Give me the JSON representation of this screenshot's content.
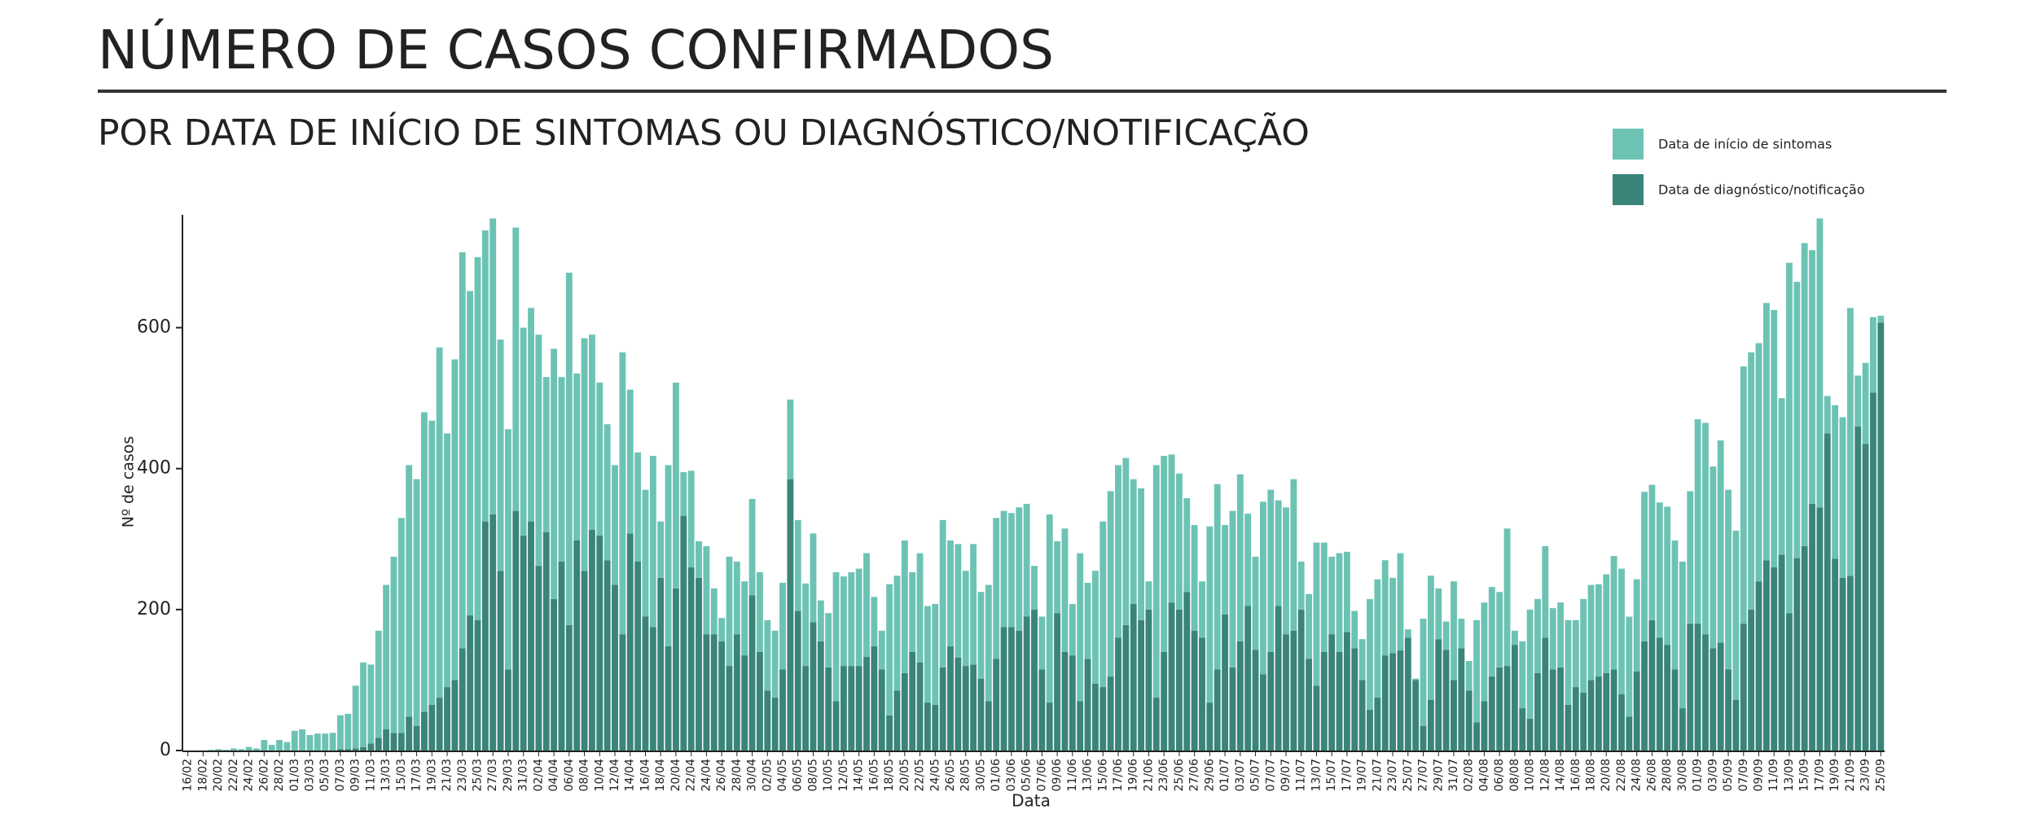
{
  "chart_data": {
    "type": "stacked_bar",
    "title": "NÚMERO DE CASOS CONFIRMADOS",
    "subtitle": "POR DATA DE INÍCIO DE SINTOMAS OU DIAGNÓSTICO/NOTIFICAÇÃO",
    "x_label": "Data",
    "y_label": "Nº de casos",
    "categories": [
      "16/02",
      null,
      "18/02",
      null,
      "20/02",
      null,
      "22/02",
      null,
      "24/02",
      null,
      "26/02",
      null,
      "28/02",
      null,
      "01/03",
      null,
      "03/03",
      null,
      "05/03",
      null,
      "07/03",
      null,
      "09/03",
      null,
      "11/03",
      null,
      "13/03",
      null,
      "15/03",
      null,
      "17/03",
      null,
      "19/03",
      null,
      "21/03",
      null,
      "23/03",
      null,
      "25/03",
      null,
      "27/03",
      null,
      "29/03",
      null,
      "31/03",
      null,
      "02/04",
      null,
      "04/04",
      null,
      "06/04",
      null,
      "08/04",
      null,
      "10/04",
      null,
      "12/04",
      null,
      "14/04",
      null,
      "16/04",
      null,
      "18/04",
      null,
      "20/04",
      null,
      "22/04",
      null,
      "24/04",
      null,
      "26/04",
      null,
      "28/04",
      null,
      "30/04",
      null,
      "02/05",
      null,
      "04/05",
      null,
      "06/05",
      null,
      "08/05",
      null,
      "10/05",
      null,
      "12/05",
      null,
      "14/05",
      null,
      "16/05",
      null,
      "18/05",
      null,
      "20/05",
      null,
      "22/05",
      null,
      "24/05",
      null,
      "26/05",
      null,
      "28/05",
      null,
      "30/05",
      null,
      "01/06",
      null,
      "03/06",
      null,
      "05/06",
      null,
      "07/06",
      null,
      "09/06",
      null,
      "11/06",
      null,
      "13/06",
      null,
      "15/06",
      null,
      "17/06",
      null,
      "19/06",
      null,
      "21/06",
      null,
      "23/06",
      null,
      "25/06",
      null,
      "27/06",
      null,
      "29/06",
      null,
      "01/07",
      null,
      "03/07",
      null,
      "05/07",
      null,
      "07/07",
      null,
      "09/07",
      null,
      "11/07",
      null,
      "13/07",
      null,
      "15/07",
      null,
      "17/07",
      null,
      "19/07",
      null,
      "21/07",
      null,
      "23/07",
      null,
      "25/07",
      null,
      "27/07",
      null,
      "29/07",
      null,
      "31/07",
      null,
      "02/08",
      null,
      "04/08",
      null,
      "06/08",
      null,
      "08/08",
      null,
      "10/08",
      null,
      "12/08",
      null,
      "14/08",
      null,
      "16/08",
      null,
      "18/08",
      null,
      "20/08",
      null,
      "22/08",
      null,
      "24/08",
      null,
      "26/08",
      null,
      "28/08",
      null,
      "30/08",
      null,
      "01/09",
      null,
      "03/09",
      null,
      "05/09",
      null,
      "07/09",
      null,
      "09/09",
      null,
      "11/09",
      null,
      "13/09",
      null,
      "15/09",
      null,
      "17/09",
      null,
      "19/09",
      null,
      "21/09",
      null,
      "23/09",
      null,
      "25/09"
    ],
    "series": [
      {
        "name": "Data de início de sintomas",
        "color": "#6cc3b4",
        "values": [
          0,
          0,
          0,
          1,
          2,
          1,
          3,
          2,
          5,
          3,
          15,
          8,
          15,
          12,
          28,
          30,
          22,
          24,
          24,
          25,
          48,
          50,
          89,
          120,
          112,
          152,
          205,
          250,
          305,
          357,
          350,
          425,
          403,
          497,
          360,
          455,
          562,
          460,
          515,
          413,
          420,
          328,
          341,
          402,
          295,
          303,
          328,
          220,
          355,
          262,
          500,
          237,
          330,
          277,
          217,
          193,
          170,
          400,
          204,
          155,
          180,
          243,
          80,
          257,
          292,
          62,
          137,
          52,
          125,
          65,
          33,
          155,
          103,
          105,
          137,
          113,
          100,
          95,
          123,
          113,
          129,
          117,
          126,
          58,
          77,
          183,
          127,
          133,
          138,
          147,
          70,
          55,
          186,
          163,
          188,
          113,
          155,
          137,
          143,
          209,
          150,
          161,
          135,
          171,
          123,
          165,
          200,
          165,
          162,
          175,
          160,
          62,
          75,
          267,
          102,
          175,
          73,
          210,
          108,
          160,
          235,
          263,
          245,
          237,
          177,
          187,
          40,
          330,
          278,
          210,
          193,
          133,
          150,
          80,
          250,
          263,
          127,
          222,
          237,
          131,
          132,
          245,
          230,
          150,
          180,
          215,
          68,
          92,
          203,
          155,
          110,
          140,
          114,
          53,
          58,
          157,
          168,
          135,
          107,
          138,
          12,
          2,
          152,
          176,
          72,
          40,
          140,
          42,
          42,
          145,
          140,
          127,
          107,
          195,
          20,
          95,
          155,
          105,
          130,
          87,
          92,
          120,
          95,
          133,
          135,
          131,
          140,
          161,
          178,
          142,
          131,
          212,
          192,
          192,
          196,
          183,
          208,
          188,
          290,
          300,
          258,
          287,
          255,
          240,
          365,
          365,
          338,
          365,
          365,
          222,
          497,
          392,
          430,
          360,
          410,
          53,
          218,
          228,
          380,
          72,
          115,
          107,
          10
        ]
      },
      {
        "name": "Data de diagnóstico/notificação",
        "color": "#3a8479",
        "values": [
          0,
          0,
          0,
          0,
          0,
          0,
          0,
          0,
          0,
          0,
          0,
          0,
          0,
          0,
          0,
          0,
          0,
          0,
          0,
          0,
          2,
          2,
          3,
          5,
          10,
          18,
          30,
          25,
          25,
          48,
          35,
          55,
          65,
          75,
          90,
          100,
          145,
          192,
          185,
          325,
          335,
          255,
          115,
          340,
          305,
          325,
          262,
          310,
          215,
          268,
          178,
          298,
          255,
          313,
          305,
          270,
          235,
          165,
          308,
          268,
          190,
          175,
          245,
          148,
          230,
          333,
          260,
          245,
          165,
          165,
          155,
          120,
          165,
          135,
          220,
          140,
          85,
          75,
          115,
          385,
          198,
          120,
          182,
          155,
          118,
          70,
          120,
          120,
          120,
          133,
          148,
          115,
          50,
          85,
          110,
          140,
          125,
          68,
          65,
          118,
          148,
          132,
          120,
          122,
          102,
          70,
          130,
          175,
          175,
          170,
          190,
          200,
          115,
          68,
          195,
          140,
          135,
          70,
          130,
          95,
          90,
          105,
          160,
          178,
          208,
          185,
          200,
          75,
          140,
          210,
          200,
          225,
          170,
          160,
          68,
          115,
          193,
          118,
          155,
          205,
          143,
          108,
          140,
          205,
          165,
          170,
          200,
          130,
          92,
          140,
          165,
          140,
          168,
          145,
          100,
          58,
          75,
          135,
          138,
          142,
          160,
          100,
          35,
          72,
          158,
          143,
          100,
          145,
          85,
          40,
          70,
          105,
          118,
          120,
          150,
          60,
          45,
          110,
          160,
          115,
          118,
          65,
          90,
          82,
          100,
          105,
          110,
          115,
          80,
          48,
          112,
          155,
          185,
          160,
          150,
          115,
          60,
          180,
          180,
          165,
          145,
          153,
          115,
          72,
          180,
          200,
          240,
          270,
          260,
          278,
          195,
          273,
          290,
          350,
          345,
          450,
          272,
          245,
          248,
          460,
          435,
          508,
          607
        ]
      }
    ],
    "ylim": [
      0,
      760
    ],
    "yticks": [
      0,
      200,
      400,
      600
    ],
    "grid": false,
    "legend": "top-right"
  }
}
